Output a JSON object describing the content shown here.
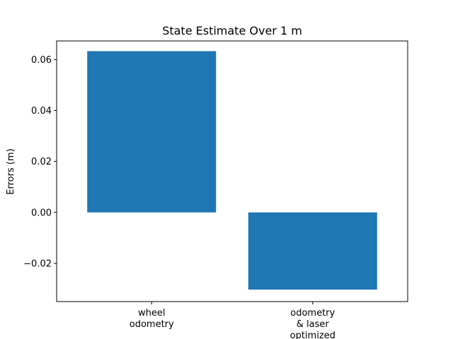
{
  "chart_data": {
    "type": "bar",
    "title": "State Estimate Over 1 m",
    "xlabel": "",
    "ylabel": "Errors (m)",
    "categories": [
      [
        "wheel",
        "odometry"
      ],
      [
        "odometry",
        "& laser",
        "optimized"
      ]
    ],
    "values": [
      0.0633,
      -0.0303
    ],
    "ylim": [
      -0.035,
      0.0673
    ],
    "yticks": [
      -0.02,
      0.0,
      0.02,
      0.04,
      0.06
    ],
    "ytick_labels": [
      "−0.02",
      "0.00",
      "0.02",
      "0.04",
      "0.06"
    ],
    "bar_color": "#1f77b4",
    "grid": false,
    "legend": "none"
  }
}
